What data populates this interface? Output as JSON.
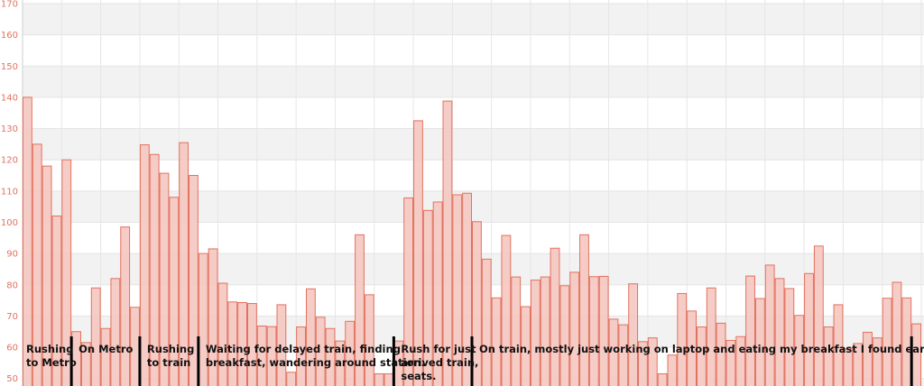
{
  "chart_data": {
    "type": "bar",
    "title": "",
    "xlabel": "",
    "ylabel": "",
    "ylim": [
      47.6,
      170
    ],
    "yticks": [
      50,
      60,
      70,
      80,
      90,
      100,
      110,
      120,
      130,
      140,
      150,
      160,
      170
    ],
    "grid": true,
    "bar_fill": "#f5c7c0",
    "bar_stroke": "#e2725f",
    "tick_color": "#e2725f",
    "band_color": "#f2f2f2",
    "marker_color": "#000000",
    "text_color": "#111111",
    "values": [
      140,
      125,
      118,
      102,
      120,
      65,
      61.5,
      79,
      66,
      82,
      98.5,
      72.8,
      124.8,
      121.7,
      115.7,
      108,
      125.5,
      115,
      90,
      91.5,
      80.5,
      74.5,
      74.3,
      74,
      66.8,
      66.6,
      73.6,
      52,
      66.5,
      78.7,
      69.6,
      66,
      62,
      68.3,
      96,
      76.8,
      51.5,
      51.5,
      62,
      107.8,
      132.5,
      103.8,
      106.5,
      138.8,
      108.8,
      109.3,
      100.2,
      88.2,
      75.8,
      95.8,
      82.5,
      73,
      81.5,
      82.5,
      91.7,
      79.7,
      84,
      96,
      82.6,
      82.7,
      69,
      67.2,
      80.3,
      61.8,
      63,
      51.5,
      57.5,
      77.2,
      71.6,
      66.5,
      79,
      67.7,
      62.2,
      63.4,
      82.8,
      75.6,
      86.3,
      82,
      78.8,
      70.2,
      83.6,
      92.4,
      66.5,
      73.6,
      59.5,
      61.2,
      64.8,
      63,
      75.7,
      80.8,
      75.8,
      67.5
    ],
    "segments": [
      {
        "start_bar": 0,
        "lines": [
          "Rushing",
          "to Metro"
        ]
      },
      {
        "start_bar": 5,
        "lines": [
          "On Metro"
        ]
      },
      {
        "start_bar": 12,
        "lines": [
          "Rushing",
          "to train"
        ]
      },
      {
        "start_bar": 18,
        "lines": [
          "Waiting for delayed train, finding",
          "breakfast, wandering around station."
        ]
      },
      {
        "start_bar": 38,
        "lines": [
          "Rush for just",
          "arrived train,",
          "seats."
        ]
      },
      {
        "start_bar": 46,
        "lines": [
          "On train, mostly just working on laptop and eating my breakfast I found earlir"
        ]
      },
      {
        "start_bar": 91,
        "lines": []
      }
    ]
  }
}
